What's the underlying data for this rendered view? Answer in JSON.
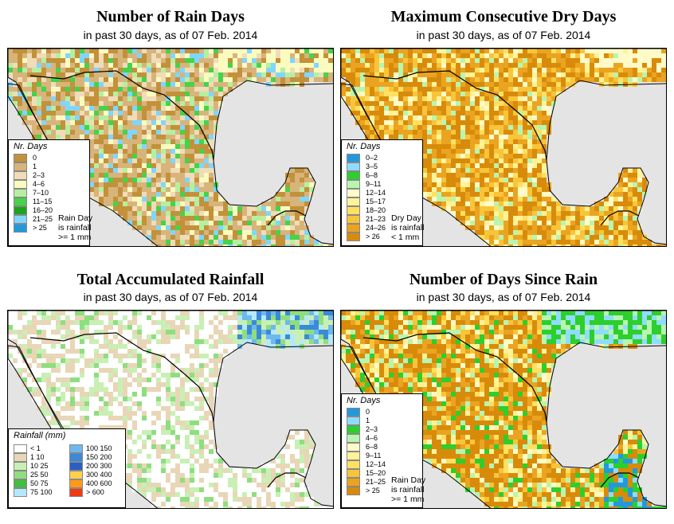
{
  "panels": [
    {
      "title": "Number of Rain Days",
      "subtitle": "in past 30 days, as of  07 Feb. 2014",
      "legend_title": "Nr. Days",
      "note": [
        "Rain Day",
        "is rainfall",
        ">= 1 mm"
      ],
      "classes": [
        {
          "label": "0",
          "color": "#c2913a"
        },
        {
          "label": "1",
          "color": "#d8b47b"
        },
        {
          "label": "2–3",
          "color": "#f0dcb8"
        },
        {
          "label": "4–6",
          "color": "#fbfbc0"
        },
        {
          "label": "7–10",
          "color": "#b4f0a0"
        },
        {
          "label": "11–15",
          "color": "#46d24a"
        },
        {
          "label": "16–20",
          "color": "#19a51e"
        },
        {
          "label": "21–25",
          "color": "#7fd6ff"
        },
        {
          "label": "> 25",
          "color": "#2299dd"
        }
      ],
      "dominant": [
        0,
        0,
        0,
        1,
        1,
        1,
        1,
        2,
        2,
        3,
        4,
        5,
        7
      ]
    },
    {
      "title": "Maximum Consecutive Dry Days",
      "subtitle": "in past 30 days, as of  07 Feb. 2014",
      "legend_title": "Nr. Days",
      "note": [
        "Dry Day",
        "is rainfall",
        "< 1 mm"
      ],
      "classes": [
        {
          "label": "0–2",
          "color": "#2299dd"
        },
        {
          "label": "3–5",
          "color": "#8fdcff"
        },
        {
          "label": "6–8",
          "color": "#2ccf2c"
        },
        {
          "label": "9–11",
          "color": "#b8f5b0"
        },
        {
          "label": "12–14",
          "color": "#fffac8"
        },
        {
          "label": "15–17",
          "color": "#fff39a"
        },
        {
          "label": "18–20",
          "color": "#ffe060"
        },
        {
          "label": "21–23",
          "color": "#f8c53a"
        },
        {
          "label": "24–26",
          "color": "#eaa421"
        },
        {
          "label": "> 26",
          "color": "#d88b0a"
        }
      ],
      "dominant": [
        9,
        9,
        9,
        9,
        8,
        8,
        8,
        7,
        7,
        6,
        5,
        4,
        3
      ]
    },
    {
      "title": "Total Accumulated Rainfall",
      "subtitle": "in past 30 days, as of  07 Feb. 2014",
      "legend_title": "Rainfall (mm)",
      "note": [],
      "classes": [
        {
          "label": "< 1",
          "color": "#ffffff"
        },
        {
          "label": "1   10",
          "color": "#e8d6b6"
        },
        {
          "label": "10   25",
          "color": "#c8f0b4"
        },
        {
          "label": "25   50",
          "color": "#8ede80"
        },
        {
          "label": "50   75",
          "color": "#3fbf3f"
        },
        {
          "label": "75  100",
          "color": "#b4e8ff"
        },
        {
          "label": "100  150",
          "color": "#6eb8ee"
        },
        {
          "label": "150  200",
          "color": "#3b8ad8"
        },
        {
          "label": "200  300",
          "color": "#2c5fc4"
        },
        {
          "label": "300  400",
          "color": "#ffd050"
        },
        {
          "label": "400  600",
          "color": "#ff9a1a"
        },
        {
          "label": "> 600",
          "color": "#f03a10"
        }
      ],
      "dominant": [
        0,
        0,
        0,
        0,
        0,
        0,
        1,
        1,
        1,
        1,
        2,
        2,
        3
      ]
    },
    {
      "title": "Number of Days Since Rain",
      "subtitle": "in past 30 days, as of  07 Feb. 2014",
      "legend_title": "Nr. Days",
      "note": [
        "Rain Day",
        "is rainfall",
        ">= 1 mm"
      ],
      "classes": [
        {
          "label": "0",
          "color": "#2299dd"
        },
        {
          "label": "1",
          "color": "#8fdcff"
        },
        {
          "label": "2–3",
          "color": "#2ccf2c"
        },
        {
          "label": "4–6",
          "color": "#b8f5b0"
        },
        {
          "label": "6–8",
          "color": "#fffac8"
        },
        {
          "label": "9–11",
          "color": "#fff39a"
        },
        {
          "label": "12–14",
          "color": "#ffe060"
        },
        {
          "label": "15–20",
          "color": "#f8c53a"
        },
        {
          "label": "21–25",
          "color": "#eaa421"
        },
        {
          "label": "> 25",
          "color": "#d88b0a"
        }
      ],
      "dominant": [
        9,
        9,
        9,
        9,
        9,
        8,
        8,
        7,
        6,
        5,
        4,
        3,
        2
      ]
    }
  ],
  "colors": {
    "sea": "#e4e4e4",
    "border": "#000000"
  }
}
